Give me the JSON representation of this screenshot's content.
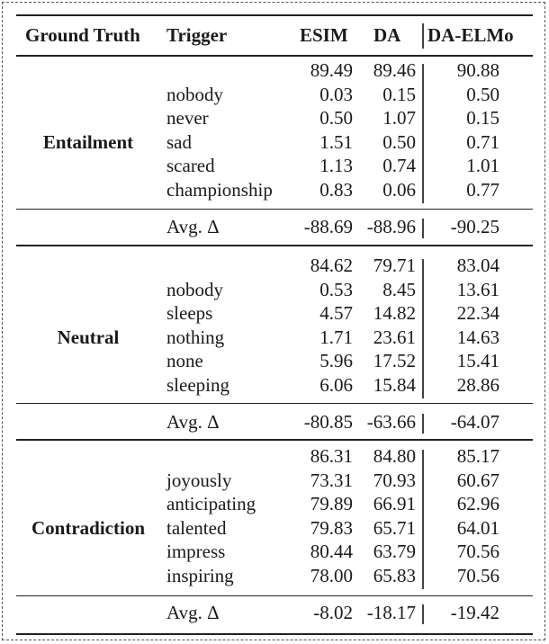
{
  "header": {
    "ground_truth": "Ground Truth",
    "trigger": "Trigger",
    "esim": "ESIM",
    "da": "DA",
    "da_elmo": "DA-ELMo"
  },
  "sections": [
    {
      "label": "Entailment",
      "rows": [
        {
          "trigger": "",
          "esim": "89.49",
          "da": "89.46",
          "da_elmo": "90.88"
        },
        {
          "trigger": "nobody",
          "esim": "0.03",
          "da": "0.15",
          "da_elmo": "0.50"
        },
        {
          "trigger": "never",
          "esim": "0.50",
          "da": "1.07",
          "da_elmo": "0.15"
        },
        {
          "trigger": "sad",
          "esim": "1.51",
          "da": "0.50",
          "da_elmo": "0.71"
        },
        {
          "trigger": "scared",
          "esim": "1.13",
          "da": "0.74",
          "da_elmo": "1.01"
        },
        {
          "trigger": "championship",
          "esim": "0.83",
          "da": "0.06",
          "da_elmo": "0.77"
        }
      ],
      "avg": {
        "label": "Avg. Δ",
        "esim": "-88.69",
        "da": "-88.96",
        "da_elmo": "-90.25"
      }
    },
    {
      "label": "Neutral",
      "rows": [
        {
          "trigger": "",
          "esim": "84.62",
          "da": "79.71",
          "da_elmo": "83.04"
        },
        {
          "trigger": "nobody",
          "esim": "0.53",
          "da": "8.45",
          "da_elmo": "13.61"
        },
        {
          "trigger": "sleeps",
          "esim": "4.57",
          "da": "14.82",
          "da_elmo": "22.34"
        },
        {
          "trigger": "nothing",
          "esim": "1.71",
          "da": "23.61",
          "da_elmo": "14.63"
        },
        {
          "trigger": "none",
          "esim": "5.96",
          "da": "17.52",
          "da_elmo": "15.41"
        },
        {
          "trigger": "sleeping",
          "esim": "6.06",
          "da": "15.84",
          "da_elmo": "28.86"
        }
      ],
      "avg": {
        "label": "Avg. Δ",
        "esim": "-80.85",
        "da": "-63.66",
        "da_elmo": "-64.07"
      }
    },
    {
      "label": "Contradiction",
      "rows": [
        {
          "trigger": "",
          "esim": "86.31",
          "da": "84.80",
          "da_elmo": "85.17"
        },
        {
          "trigger": "joyously",
          "esim": "73.31",
          "da": "70.93",
          "da_elmo": "60.67"
        },
        {
          "trigger": "anticipating",
          "esim": "79.89",
          "da": "66.91",
          "da_elmo": "62.96"
        },
        {
          "trigger": "talented",
          "esim": "79.83",
          "da": "65.71",
          "da_elmo": "64.01"
        },
        {
          "trigger": "impress",
          "esim": "80.44",
          "da": "63.79",
          "da_elmo": "70.56"
        },
        {
          "trigger": "inspiring",
          "esim": "78.00",
          "da": "65.83",
          "da_elmo": "70.56"
        }
      ],
      "avg": {
        "label": "Avg. Δ",
        "esim": "-8.02",
        "da": "-18.17",
        "da_elmo": "-19.42"
      }
    }
  ]
}
